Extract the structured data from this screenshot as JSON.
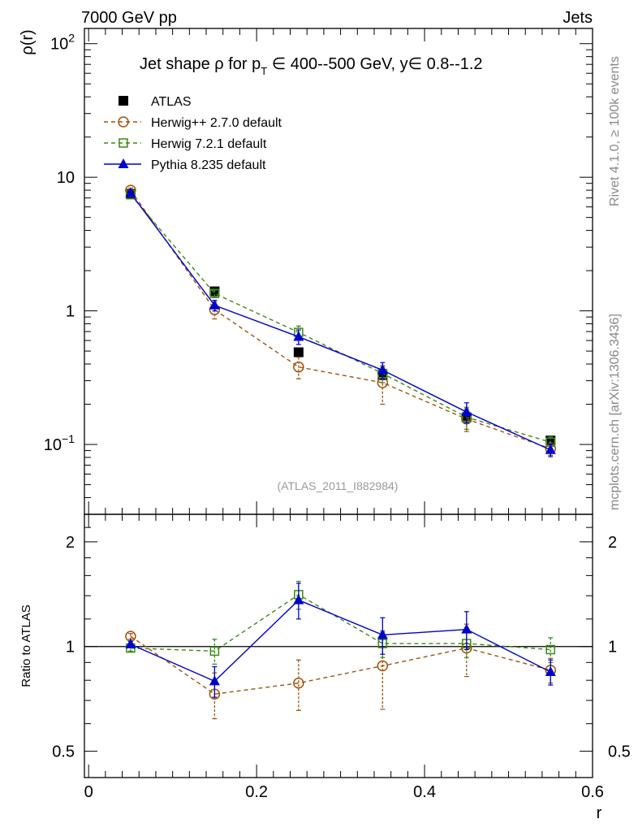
{
  "header": {
    "left": "7000 GeV pp",
    "right": "Jets"
  },
  "side_labels": {
    "rivet": "Rivet 4.1.0, ≥ 100k events",
    "mcplots": "mcplots.cern.ch [arXiv:1306.3436]"
  },
  "colors": {
    "atlas": "#000000",
    "herwigpp": "#a0520a",
    "herwig7": "#3a8a14",
    "pythia": "#0000cc"
  },
  "chart_data": [
    {
      "type": "line",
      "panel": "main",
      "title_main": "Jet shape ρ for p",
      "title_sub": "T",
      "title_rest": " ∈ 400--500 GeV, y∈ 0.8--1.2",
      "ylabel": "ρ(r)",
      "yscale": "log",
      "ylim": [
        0.03,
        130
      ],
      "xlim": [
        -0.005,
        0.6
      ],
      "yticks": [
        {
          "value": 100,
          "base": "10",
          "exp": "2"
        },
        {
          "value": 10,
          "label": "10"
        },
        {
          "value": 1,
          "label": "1"
        },
        {
          "value": 0.1,
          "base": "10",
          "exp": "−1"
        }
      ],
      "watermark": "(ATLAS_2011_I882984)",
      "x": [
        0.05,
        0.15,
        0.25,
        0.35,
        0.45,
        0.55
      ],
      "series": [
        {
          "name": "ATLAS",
          "marker": "square-filled",
          "values": [
            7.5,
            1.4,
            0.49,
            0.33,
            0.16,
            0.107
          ],
          "err": [
            0.2,
            0.05,
            0.03,
            0.02,
            0.01,
            0.007
          ]
        },
        {
          "name": "Herwig++ 2.7.0 default",
          "marker": "circle-open",
          "dash": true,
          "values": [
            8.0,
            1.02,
            0.38,
            0.29,
            0.155,
            0.093
          ],
          "err": [
            0.3,
            0.15,
            0.07,
            0.09,
            0.03,
            0.01
          ]
        },
        {
          "name": "Herwig 7.2.1 default",
          "marker": "square-open",
          "dash": true,
          "values": [
            7.4,
            1.35,
            0.69,
            0.34,
            0.16,
            0.104
          ],
          "err": [
            0.3,
            0.08,
            0.08,
            0.05,
            0.03,
            0.01
          ]
        },
        {
          "name": "Pythia 8.235 default",
          "marker": "triangle-filled",
          "dash": false,
          "values": [
            7.6,
            1.1,
            0.64,
            0.36,
            0.175,
            0.091
          ],
          "err": [
            0.3,
            0.1,
            0.08,
            0.05,
            0.03,
            0.01
          ]
        }
      ]
    },
    {
      "type": "line",
      "panel": "ratio",
      "ylabel": "Ratio to ATLAS",
      "xlabel": "r",
      "yscale": "log",
      "ylim": [
        0.42,
        2.4
      ],
      "yticks": [
        {
          "value": 0.5,
          "label": "0.5"
        },
        {
          "value": 1,
          "label": "1"
        },
        {
          "value": 2,
          "label": "2"
        }
      ],
      "xticks": [
        {
          "value": 0,
          "label": "0"
        },
        {
          "value": 0.2,
          "label": "0.2"
        },
        {
          "value": 0.4,
          "label": "0.4"
        },
        {
          "value": 0.6,
          "label": "0.6"
        }
      ],
      "x": [
        0.05,
        0.15,
        0.25,
        0.35,
        0.45,
        0.55
      ],
      "series": [
        {
          "name": "Herwig++ 2.7.0 default",
          "values": [
            1.07,
            0.73,
            0.785,
            0.88,
            0.99,
            0.855
          ],
          "err": [
            0.02,
            0.11,
            0.13,
            0.22,
            0.17,
            0.07
          ]
        },
        {
          "name": "Herwig 7.2.1 default",
          "values": [
            0.99,
            0.97,
            1.41,
            1.02,
            1.02,
            0.98
          ],
          "err": [
            0.02,
            0.08,
            0.13,
            0.09,
            0.09,
            0.08
          ]
        },
        {
          "name": "Pythia 8.235 default",
          "values": [
            1.015,
            0.795,
            1.36,
            1.08,
            1.12,
            0.845
          ],
          "err": [
            0.02,
            0.08,
            0.16,
            0.13,
            0.14,
            0.07
          ]
        }
      ]
    }
  ]
}
